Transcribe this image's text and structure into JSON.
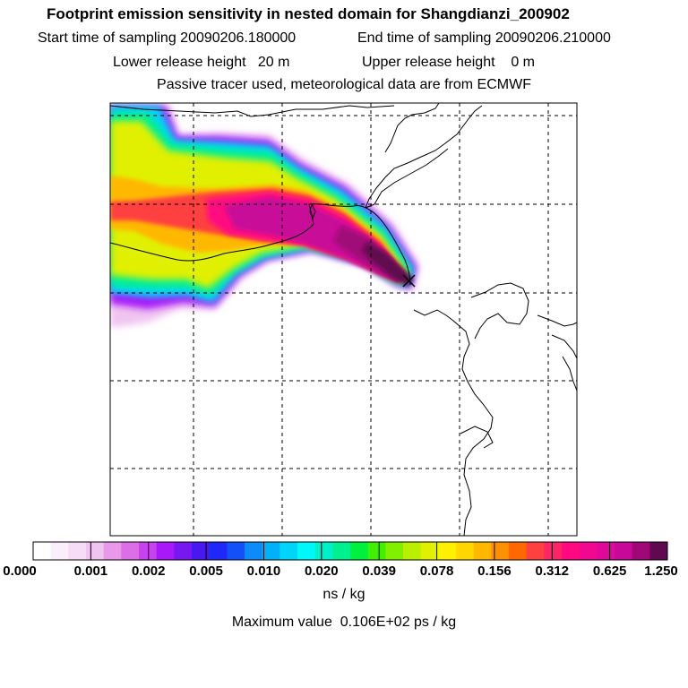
{
  "header": {
    "title": "Footprint emission sensitivity in nested domain for Shangdianzi_200902",
    "start_label": "Start time of sampling 20090206.180000",
    "end_label": "End time of sampling 20090206.210000",
    "lower_label": "Lower release height   20 m",
    "upper_label": "Upper release height    0 m",
    "tracer_note": "Passive tracer used, meteorological data are from ECMWF"
  },
  "colorbar": {
    "tick_labels": [
      "0.000",
      "0.001",
      "0.002",
      "0.005",
      "0.010",
      "0.020",
      "0.039",
      "0.078",
      "0.156",
      "0.312",
      "0.625",
      "1.250"
    ],
    "colors": [
      "#ffffff",
      "#fbeefb",
      "#f6dcf6",
      "#f0c4f0",
      "#e89ae8",
      "#dc6ee8",
      "#c842f0",
      "#a818f8",
      "#7818f0",
      "#4818f0",
      "#1e28f8",
      "#1450f8",
      "#0c8cf8",
      "#00b0f8",
      "#00d4f8",
      "#00f8f8",
      "#00f0c8",
      "#00f090",
      "#00f040",
      "#40f000",
      "#80f000",
      "#b8f000",
      "#e0f000",
      "#fff000",
      "#ffd800",
      "#ffb800",
      "#ff9000",
      "#ff6800",
      "#ff4040",
      "#ff2468",
      "#ff0880",
      "#f00890",
      "#e00898",
      "#c80898",
      "#a00878",
      "#600850"
    ],
    "units": "ns / kg"
  },
  "footer": {
    "max_value": "Maximum value  0.106E+02 ps / kg"
  }
}
